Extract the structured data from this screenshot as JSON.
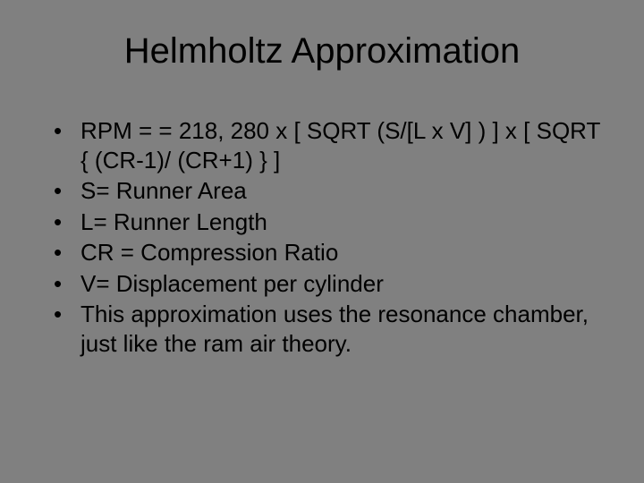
{
  "slide": {
    "title": "Helmholtz Approximation",
    "bullets": [
      "RPM = = 218, 280 x [ SQRT (S/[L x V] ) ] x [ SQRT { (CR-1)/ (CR+1) } ]",
      "S= Runner Area",
      "L= Runner Length",
      "CR = Compression Ratio",
      "V= Displacement per cylinder",
      "This approximation uses the resonance chamber, just like the ram air theory."
    ],
    "background_color": "#808080",
    "text_color": "#000000",
    "title_fontsize": 40,
    "body_fontsize": 26
  }
}
